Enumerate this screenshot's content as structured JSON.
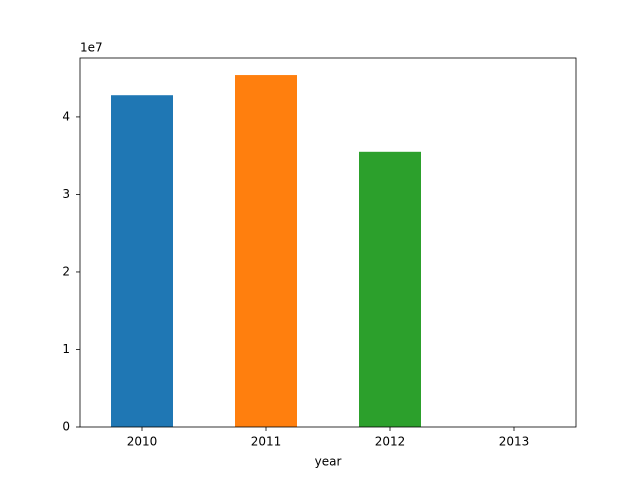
{
  "chart_data": {
    "type": "bar",
    "categories": [
      "2010",
      "2011",
      "2012",
      "2013"
    ],
    "values": [
      42800000,
      45400000,
      35500000,
      0
    ],
    "colors": [
      "#1f77b4",
      "#ff7f0e",
      "#2ca02c",
      "#d62728"
    ],
    "x_label": "year",
    "y_offset_label": "1e7",
    "ylim": [
      0,
      47600000
    ],
    "yticks": [
      0,
      {
        "value": 10000000,
        "label": "1"
      },
      {
        "value": 20000000,
        "label": "2"
      },
      {
        "value": 30000000,
        "label": "3"
      },
      {
        "value": 40000000,
        "label": "4"
      }
    ],
    "grid": false
  }
}
